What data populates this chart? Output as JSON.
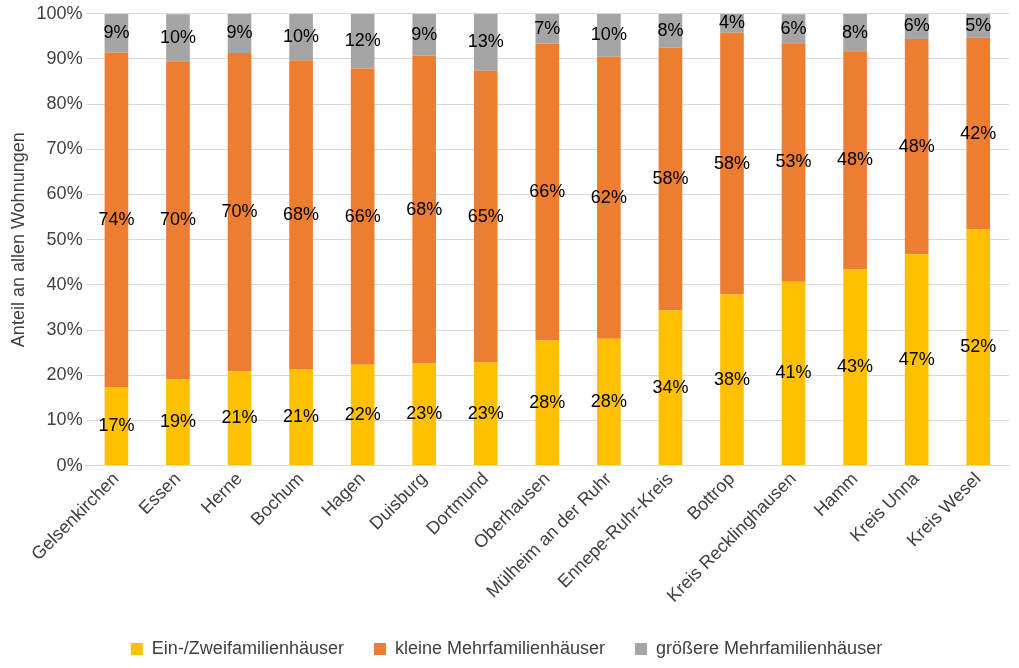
{
  "chart_data": {
    "type": "bar",
    "stacked": true,
    "ylabel": "Anteil an allen Wohnungen",
    "categories": [
      "Gelsenkirchen",
      "Essen",
      "Herne",
      "Bochum",
      "Hagen",
      "Duisburg",
      "Dortmund",
      "Oberhausen",
      "Mülheim an der Ruhr",
      "Ennepe-Ruhr-Kreis",
      "Bottrop",
      "Kreis Recklinghausen",
      "Hamm",
      "Kreis Unna",
      "Kreis Wesel"
    ],
    "series": [
      {
        "name": "Ein-/Zweifamilienhäuser",
        "color": "#ffc000",
        "values": [
          17.4,
          19.1,
          20.9,
          21.4,
          22.3,
          22.6,
          22.8,
          27.7,
          28.1,
          34.4,
          37.9,
          40.7,
          43.4,
          46.8,
          52.3
        ],
        "value_labels": [
          "17%",
          "19%",
          "21%",
          "21%",
          "22%",
          "23%",
          "23%",
          "28%",
          "28%",
          "34%",
          "38%",
          "41%",
          "43%",
          "47%",
          "52%"
        ]
      },
      {
        "name": "kleine Mehrfamilienhäuser",
        "color": "#ed7d31",
        "values": [
          74.0,
          70.4,
          70.4,
          68.3,
          65.6,
          68.1,
          64.6,
          65.7,
          62.4,
          58.1,
          57.9,
          52.8,
          48.3,
          47.6,
          42.4
        ],
        "value_labels": [
          "74%",
          "70%",
          "70%",
          "68%",
          "66%",
          "68%",
          "65%",
          "66%",
          "62%",
          "58%",
          "58%",
          "53%",
          "48%",
          "48%",
          "42%"
        ]
      },
      {
        "name": "größere Mehrfamilienhäuser",
        "color": "#a5a5a5",
        "values": [
          8.6,
          10.4,
          8.7,
          10.3,
          12.1,
          9.3,
          12.6,
          6.6,
          9.5,
          7.5,
          4.2,
          6.4,
          8.3,
          5.6,
          5.3
        ],
        "value_labels": [
          "9%",
          "10%",
          "9%",
          "10%",
          "12%",
          "9%",
          "13%",
          "7%",
          "10%",
          "8%",
          "4%",
          "6%",
          "8%",
          "6%",
          "5%"
        ]
      }
    ],
    "ylim": [
      0,
      100
    ],
    "yticks": [
      {
        "value": 0,
        "label": "0%"
      },
      {
        "value": 10,
        "label": "10%"
      },
      {
        "value": 20,
        "label": "20%"
      },
      {
        "value": 30,
        "label": "30%"
      },
      {
        "value": 40,
        "label": "40%"
      },
      {
        "value": 50,
        "label": "50%"
      },
      {
        "value": 60,
        "label": "60%"
      },
      {
        "value": 70,
        "label": "70%"
      },
      {
        "value": 80,
        "label": "80%"
      },
      {
        "value": 90,
        "label": "90%"
      },
      {
        "value": 100,
        "label": "100%"
      }
    ],
    "grid": "y",
    "legend": "bottom"
  }
}
